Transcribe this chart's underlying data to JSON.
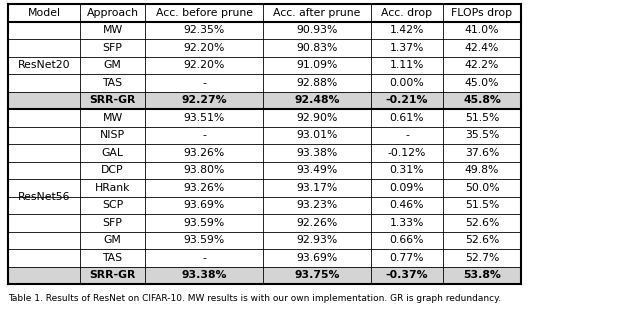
{
  "headers": [
    "Model",
    "Approach",
    "Acc. before prune",
    "Acc. after prune",
    "Acc. drop",
    "FLOPs drop"
  ],
  "resnet20_rows": [
    [
      "MW",
      "92.35%",
      "90.93%",
      "1.42%",
      "41.0%"
    ],
    [
      "SFP",
      "92.20%",
      "90.83%",
      "1.37%",
      "42.4%"
    ],
    [
      "GM",
      "92.20%",
      "91.09%",
      "1.11%",
      "42.2%"
    ],
    [
      "TAS",
      "-",
      "92.88%",
      "0.00%",
      "45.0%"
    ],
    [
      "SRR-GR",
      "92.27%",
      "92.48%",
      "-0.21%",
      "45.8%"
    ]
  ],
  "resnet56_rows": [
    [
      "MW",
      "93.51%",
      "92.90%",
      "0.61%",
      "51.5%"
    ],
    [
      "NISP",
      "-",
      "93.01%",
      "-",
      "35.5%"
    ],
    [
      "GAL",
      "93.26%",
      "93.38%",
      "-0.12%",
      "37.6%"
    ],
    [
      "DCP",
      "93.80%",
      "93.49%",
      "0.31%",
      "49.8%"
    ],
    [
      "HRank",
      "93.26%",
      "93.17%",
      "0.09%",
      "50.0%"
    ],
    [
      "SCP",
      "93.69%",
      "93.23%",
      "0.46%",
      "51.5%"
    ],
    [
      "SFP",
      "93.59%",
      "92.26%",
      "1.33%",
      "52.6%"
    ],
    [
      "GM",
      "93.59%",
      "92.93%",
      "0.66%",
      "52.6%"
    ],
    [
      "TAS",
      "-",
      "93.69%",
      "0.77%",
      "52.7%"
    ],
    [
      "SRR-GR",
      "93.38%",
      "93.75%",
      "-0.37%",
      "53.8%"
    ]
  ],
  "highlight_color": "#d4d4d4",
  "caption": "Table 1. Results of ResNet on CIFAR-10. MW results is with our own implementation. GR is graph redundancy.",
  "fig_width": 6.4,
  "fig_height": 3.28,
  "font_size": 7.8,
  "caption_font_size": 6.5
}
